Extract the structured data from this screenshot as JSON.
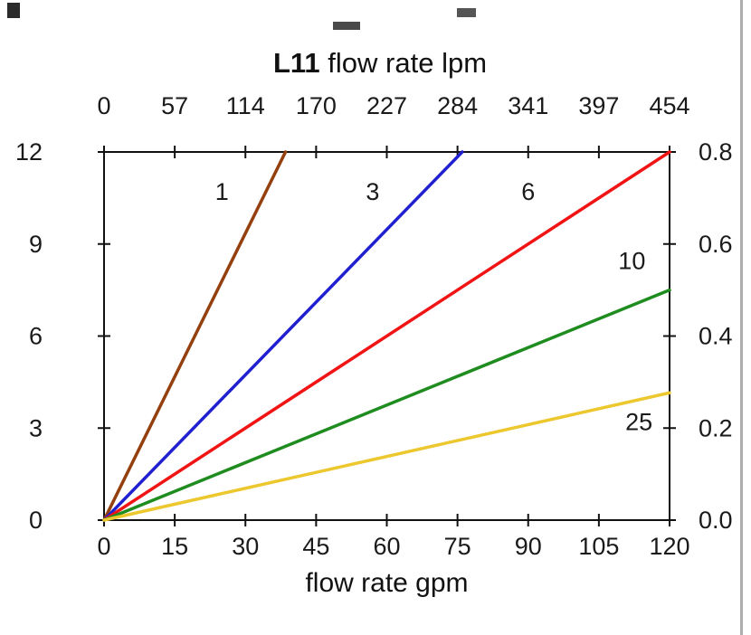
{
  "chart_data": {
    "type": "line",
    "title": "L11 flow rate lpm",
    "title_model": "L11",
    "title_rest": "flow rate lpm",
    "x_bottom": {
      "label": "flow rate gpm",
      "range": [
        0,
        120
      ],
      "ticks": [
        0,
        15,
        30,
        45,
        60,
        75,
        90,
        105,
        120
      ]
    },
    "x_top": {
      "label": "L11 flow rate lpm",
      "range": [
        0,
        454
      ],
      "ticks": [
        0,
        57,
        114,
        170,
        227,
        284,
        341,
        397,
        454
      ]
    },
    "y_left": {
      "range": [
        0,
        12
      ],
      "ticks": [
        0,
        3,
        6,
        9,
        12
      ]
    },
    "y_right": {
      "range": [
        0,
        0.8
      ],
      "tick_labels": [
        "0.0",
        "0.2",
        "0.4",
        "0.6",
        "0.8"
      ]
    },
    "grid": false,
    "legend": "none",
    "series": [
      {
        "name": "1",
        "color": "#94400E",
        "points": [
          [
            0,
            0
          ],
          [
            38.5,
            12
          ]
        ],
        "label_pos": [
          25,
          10.7
        ]
      },
      {
        "name": "3",
        "color": "#2020D0",
        "points": [
          [
            0,
            0
          ],
          [
            76,
            12
          ]
        ],
        "label_pos": [
          57,
          10.7
        ]
      },
      {
        "name": "6",
        "color": "#F01414",
        "points": [
          [
            0,
            0
          ],
          [
            120,
            12
          ]
        ],
        "label_pos": [
          90,
          10.7
        ]
      },
      {
        "name": "10",
        "color": "#1E8C1E",
        "points": [
          [
            0,
            0
          ],
          [
            120,
            7.5
          ]
        ],
        "label_pos": [
          112,
          8.45
        ]
      },
      {
        "name": "25",
        "color": "#EDC72E",
        "points": [
          [
            0,
            0
          ],
          [
            120,
            4.15
          ]
        ],
        "label_pos": [
          113.5,
          3.2
        ]
      }
    ]
  }
}
